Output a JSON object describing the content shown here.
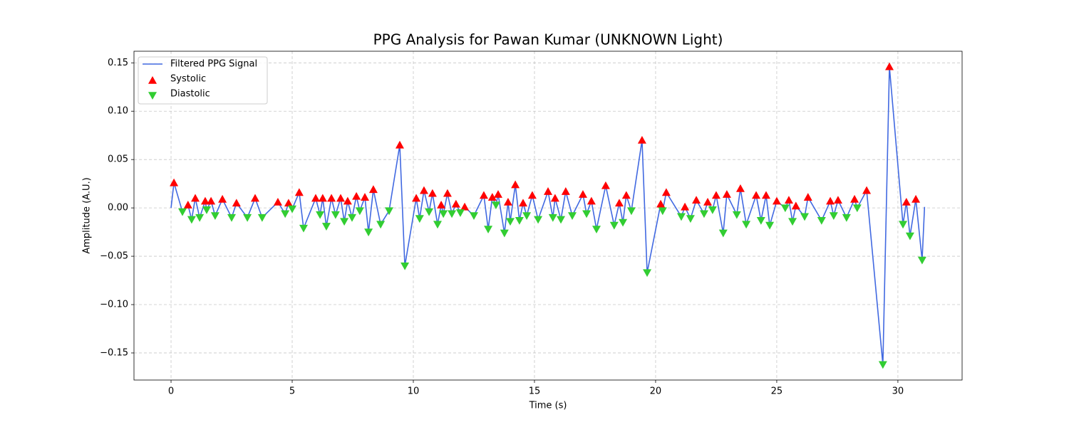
{
  "chart_data": {
    "type": "line",
    "title": "PPG Analysis for Pawan Kumar (UNKNOWN Light)",
    "x_label": "Time (s)",
    "y_label": "Amplitude (A.U.)",
    "xlim": [
      -1.53,
      32.65
    ],
    "ylim": [
      -0.178,
      0.162
    ],
    "xticks": [
      0,
      5,
      10,
      15,
      20,
      25,
      30
    ],
    "yticks": [
      {
        "value": -0.15,
        "label": "−0.15"
      },
      {
        "value": -0.1,
        "label": "−0.10"
      },
      {
        "value": -0.05,
        "label": "−0.05"
      },
      {
        "value": 0,
        "label": "0.00"
      },
      0.05,
      {
        "value": 0.1,
        "label": "0.10"
      },
      0.15
    ],
    "grid": true,
    "legend": "upper left",
    "series": [
      {
        "name": "Filtered PPG Signal",
        "color": "#4169e1",
        "marker": "line",
        "x": [
          0,
          0.12,
          0.47,
          0.7,
          0.85,
          1.0,
          1.18,
          1.41,
          1.47,
          1.65,
          1.82,
          2.12,
          2.5,
          2.7,
          3.15,
          3.47,
          3.76,
          4.41,
          4.71,
          4.85,
          5.0,
          5.29,
          5.47,
          5.97,
          6.15,
          6.26,
          6.41,
          6.62,
          6.79,
          7.0,
          7.15,
          7.29,
          7.47,
          7.65,
          7.79,
          8.0,
          8.15,
          8.35,
          8.65,
          9.0,
          9.44,
          9.65,
          10.12,
          10.26,
          10.44,
          10.65,
          10.79,
          11.0,
          11.15,
          11.24,
          11.41,
          11.59,
          11.76,
          11.94,
          12.12,
          12.5,
          12.91,
          13.09,
          13.26,
          13.41,
          13.5,
          13.76,
          13.91,
          14.0,
          14.21,
          14.38,
          14.53,
          14.68,
          14.91,
          15.15,
          15.56,
          15.76,
          15.85,
          16.09,
          16.29,
          16.56,
          17.0,
          17.15,
          17.35,
          17.56,
          17.94,
          18.29,
          18.5,
          18.65,
          18.79,
          19.0,
          19.44,
          19.65,
          20.21,
          20.29,
          20.44,
          21.06,
          21.21,
          21.44,
          21.68,
          22.0,
          22.15,
          22.35,
          22.5,
          22.79,
          22.94,
          23.35,
          23.5,
          23.74,
          24.15,
          24.35,
          24.56,
          24.71,
          25.0,
          25.35,
          25.5,
          25.65,
          25.79,
          26.15,
          26.29,
          26.85,
          27.21,
          27.35,
          27.53,
          27.88,
          28.21,
          28.32,
          28.71,
          29.38,
          29.65,
          30.21,
          30.35,
          30.5,
          30.74,
          31.0,
          31.1
        ],
        "values": [
          0,
          0.026,
          -0.004,
          0.003,
          -0.012,
          0.01,
          -0.01,
          0.007,
          -0.002,
          0.007,
          -0.008,
          0.009,
          -0.01,
          0.005,
          -0.01,
          0.01,
          -0.01,
          0.006,
          -0.006,
          0.005,
          -0.001,
          0.016,
          -0.021,
          0.01,
          -0.007,
          0.01,
          -0.019,
          0.01,
          -0.007,
          0.01,
          -0.014,
          0.007,
          -0.01,
          0.012,
          -0.003,
          0.011,
          -0.025,
          0.019,
          -0.017,
          -0.003,
          0.065,
          -0.06,
          0.01,
          -0.011,
          0.018,
          -0.004,
          0.015,
          -0.017,
          0.003,
          -0.006,
          0.015,
          -0.006,
          0.004,
          -0.005,
          0.001,
          -0.008,
          0.013,
          -0.022,
          0.011,
          0.003,
          0.014,
          -0.026,
          0.006,
          -0.014,
          0.024,
          -0.013,
          0.005,
          -0.008,
          0.013,
          -0.012,
          0.017,
          -0.01,
          0.01,
          -0.012,
          0.017,
          -0.008,
          0.014,
          -0.006,
          0.007,
          -0.022,
          0.023,
          -0.018,
          0.005,
          -0.015,
          0.013,
          -0.003,
          0.07,
          -0.067,
          0.004,
          -0.003,
          0.016,
          -0.009,
          0.001,
          -0.011,
          0.008,
          -0.006,
          0.006,
          -0.002,
          0.013,
          -0.026,
          0.014,
          -0.007,
          0.02,
          -0.017,
          0.013,
          -0.013,
          0.013,
          -0.018,
          0.007,
          0.0,
          0.008,
          -0.014,
          0.002,
          -0.009,
          0.011,
          -0.013,
          0.007,
          -0.008,
          0.008,
          -0.01,
          0.009,
          0.0,
          0.018,
          -0.162,
          0.146,
          -0.017,
          0.006,
          -0.029,
          0.009,
          -0.054,
          0.001
        ]
      },
      {
        "name": "Systolic",
        "color": "#ff0000",
        "marker": "^",
        "x": [
          0.12,
          0.7,
          1.0,
          1.41,
          1.65,
          2.12,
          2.7,
          3.47,
          4.41,
          4.85,
          5.29,
          5.97,
          6.26,
          6.62,
          7.0,
          7.29,
          7.65,
          8.0,
          8.35,
          9.44,
          10.12,
          10.44,
          10.79,
          11.15,
          11.41,
          11.76,
          12.12,
          12.91,
          13.26,
          13.5,
          13.91,
          14.21,
          14.53,
          14.91,
          15.56,
          15.85,
          16.29,
          17.0,
          17.35,
          17.94,
          18.5,
          18.79,
          19.44,
          20.21,
          20.44,
          21.21,
          21.68,
          22.15,
          22.5,
          22.94,
          23.5,
          24.15,
          24.56,
          25.0,
          25.5,
          25.79,
          26.29,
          27.21,
          27.53,
          28.21,
          28.71,
          29.65,
          30.35,
          30.74
        ],
        "values": [
          0.026,
          0.003,
          0.01,
          0.007,
          0.007,
          0.009,
          0.005,
          0.01,
          0.006,
          0.005,
          0.016,
          0.01,
          0.01,
          0.01,
          0.01,
          0.007,
          0.012,
          0.011,
          0.019,
          0.065,
          0.01,
          0.018,
          0.015,
          0.003,
          0.015,
          0.004,
          0.001,
          0.013,
          0.011,
          0.014,
          0.006,
          0.024,
          0.005,
          0.013,
          0.017,
          0.01,
          0.017,
          0.014,
          0.007,
          0.023,
          0.005,
          0.013,
          0.07,
          0.004,
          0.016,
          0.001,
          0.008,
          0.006,
          0.013,
          0.014,
          0.02,
          0.013,
          0.013,
          0.007,
          0.008,
          0.002,
          0.011,
          0.007,
          0.008,
          0.009,
          0.018,
          0.146,
          0.006,
          0.009
        ]
      },
      {
        "name": "Diastolic",
        "color": "#32cd32",
        "marker": "v",
        "x": [
          0.47,
          0.85,
          1.18,
          1.47,
          1.82,
          2.5,
          3.15,
          3.76,
          4.71,
          5.0,
          5.47,
          6.15,
          6.41,
          6.79,
          7.15,
          7.47,
          7.79,
          8.15,
          8.65,
          9.0,
          9.65,
          10.26,
          10.65,
          11.0,
          11.24,
          11.59,
          11.94,
          12.5,
          13.09,
          13.41,
          13.76,
          14.0,
          14.38,
          14.68,
          15.15,
          15.76,
          16.09,
          16.56,
          17.15,
          17.56,
          18.29,
          18.65,
          19.0,
          19.65,
          20.29,
          21.06,
          21.44,
          22.0,
          22.35,
          22.79,
          23.35,
          23.74,
          24.35,
          24.71,
          25.35,
          25.65,
          26.15,
          26.85,
          27.35,
          27.88,
          28.32,
          29.38,
          30.21,
          30.5,
          31.0
        ],
        "values": [
          -0.004,
          -0.012,
          -0.01,
          -0.002,
          -0.008,
          -0.01,
          -0.01,
          -0.01,
          -0.006,
          -0.001,
          -0.021,
          -0.007,
          -0.019,
          -0.007,
          -0.014,
          -0.01,
          -0.003,
          -0.025,
          -0.017,
          -0.003,
          -0.06,
          -0.011,
          -0.004,
          -0.017,
          -0.006,
          -0.006,
          -0.005,
          -0.008,
          -0.022,
          0.003,
          -0.026,
          -0.014,
          -0.013,
          -0.008,
          -0.012,
          -0.01,
          -0.012,
          -0.008,
          -0.006,
          -0.022,
          -0.018,
          -0.015,
          -0.003,
          -0.067,
          -0.003,
          -0.009,
          -0.011,
          -0.006,
          -0.002,
          -0.026,
          -0.007,
          -0.017,
          -0.013,
          -0.018,
          0.0,
          -0.014,
          -0.009,
          -0.013,
          -0.008,
          -0.01,
          0.0,
          -0.162,
          -0.017,
          -0.029,
          -0.054
        ]
      }
    ]
  }
}
